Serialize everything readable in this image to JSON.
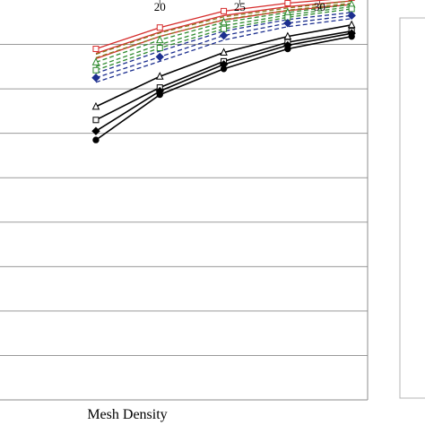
{
  "chart_data": {
    "type": "line",
    "xlabel": "Mesh Density",
    "ylabel": "",
    "xlim": [
      10,
      33
    ],
    "x_ticks": [
      20,
      25,
      30
    ],
    "x_tick_labels": [
      "20",
      "25",
      "30"
    ],
    "ylim": [
      0,
      9
    ],
    "y_tick_values": [
      1,
      2,
      3,
      4,
      5,
      6,
      7,
      8
    ],
    "grid": true,
    "legend_panel": "right",
    "series_style_groups": [
      {
        "color": "#d62b2b",
        "dash": "solid",
        "count": 3
      },
      {
        "color": "#8a7a22",
        "dash": "dashed",
        "count": 2
      },
      {
        "color": "#2e8b2e",
        "dash": "dashed",
        "count": 3
      },
      {
        "color": "#1c2f8f",
        "dash": "dashed",
        "count": 3
      },
      {
        "color": "#000000",
        "dash": "solid",
        "count": 4
      }
    ],
    "x": [
      16,
      20,
      24,
      28,
      32
    ],
    "series": [
      {
        "color": "#d62b2b",
        "dash": "solid",
        "marker": "square",
        "values": [
          7.9,
          8.38,
          8.75,
          8.93,
          9.05
        ]
      },
      {
        "color": "#d62b2b",
        "dash": "solid",
        "marker": "none",
        "values": [
          7.8,
          8.28,
          8.65,
          8.85,
          8.98
        ]
      },
      {
        "color": "#d62b2b",
        "dash": "solid",
        "marker": "none",
        "values": [
          7.68,
          8.18,
          8.55,
          8.76,
          8.9
        ]
      },
      {
        "color": "#8a7a22",
        "dash": "dashed",
        "marker": "none",
        "values": [
          7.78,
          8.26,
          8.62,
          8.82,
          8.98
        ]
      },
      {
        "color": "#8a7a22",
        "dash": "dashed",
        "marker": "none",
        "values": [
          7.7,
          8.18,
          8.56,
          8.77,
          8.93
        ]
      },
      {
        "color": "#2e8b2e",
        "dash": "dashed",
        "marker": "triangle",
        "values": [
          7.6,
          8.1,
          8.5,
          8.72,
          8.9
        ]
      },
      {
        "color": "#2e8b2e",
        "dash": "dashed",
        "marker": "none",
        "values": [
          7.5,
          8.0,
          8.42,
          8.66,
          8.85
        ]
      },
      {
        "color": "#2e8b2e",
        "dash": "dashed",
        "marker": "square",
        "values": [
          7.42,
          7.92,
          8.35,
          8.61,
          8.8
        ]
      },
      {
        "color": "#1c2f8f",
        "dash": "dashed",
        "marker": "none",
        "values": [
          7.35,
          7.85,
          8.3,
          8.56,
          8.72
        ]
      },
      {
        "color": "#1c2f8f",
        "dash": "dashed",
        "marker": "diamond",
        "values": [
          7.25,
          7.72,
          8.2,
          8.48,
          8.65
        ]
      },
      {
        "color": "#1c2f8f",
        "dash": "dashed",
        "marker": "none",
        "values": [
          7.15,
          7.62,
          8.1,
          8.4,
          8.58
        ]
      },
      {
        "color": "#000000",
        "dash": "solid",
        "marker": "triangle",
        "values": [
          6.6,
          7.28,
          7.82,
          8.18,
          8.44
        ]
      },
      {
        "color": "#000000",
        "dash": "solid",
        "marker": "square",
        "values": [
          6.3,
          7.03,
          7.62,
          8.05,
          8.3
        ]
      },
      {
        "color": "#000000",
        "dash": "solid",
        "marker": "diamond",
        "values": [
          6.05,
          6.95,
          7.55,
          7.98,
          8.25
        ]
      },
      {
        "color": "#000000",
        "dash": "solid",
        "marker": "circle",
        "values": [
          5.85,
          6.87,
          7.45,
          7.9,
          8.18
        ]
      }
    ]
  }
}
